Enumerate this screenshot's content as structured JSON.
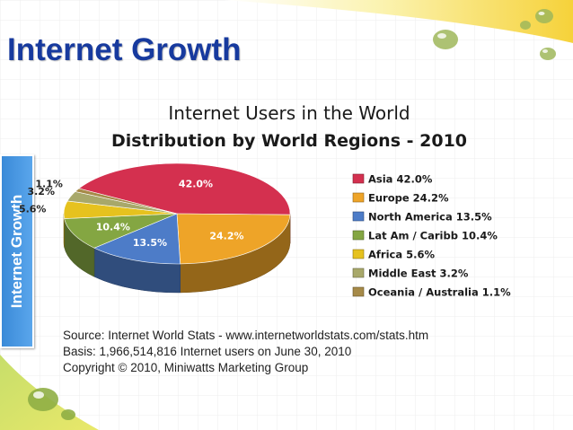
{
  "slide": {
    "title": "Internet Growth",
    "side_tab_label": "Internet Growth",
    "accent_color": "#173a9e",
    "tab_color": "#3a8ad8"
  },
  "chart_data": {
    "type": "pie",
    "title": "Internet Users in the World",
    "subtitle": "Distribution by World Regions - 2010",
    "slices": [
      {
        "label": "Asia",
        "value": 42.0,
        "legend_text": "Asia  42.0%",
        "data_label": "42.0%",
        "color": "#d4304f"
      },
      {
        "label": "Europe",
        "value": 24.2,
        "legend_text": "Europe  24.2%",
        "data_label": "24.2%",
        "color": "#eea428"
      },
      {
        "label": "North America",
        "value": 13.5,
        "legend_text": "North America  13.5%",
        "data_label": "13.5%",
        "color": "#4d7cc8"
      },
      {
        "label": "Lat Am / Caribb",
        "value": 10.4,
        "legend_text": "Lat Am / Caribb  10.4%",
        "data_label": "10.4%",
        "color": "#84a642"
      },
      {
        "label": "Africa",
        "value": 5.6,
        "legend_text": "Africa  5.6%",
        "data_label": "5.6%",
        "color": "#e6c21e"
      },
      {
        "label": "Middle East",
        "value": 3.2,
        "legend_text": "Middle East  3.2%",
        "data_label": "3.2%",
        "color": "#a8a86a"
      },
      {
        "label": "Oceania / Australia",
        "value": 1.1,
        "legend_text": "Oceania / Australia  1.1%",
        "data_label": "1.1%",
        "color": "#a68a48"
      }
    ],
    "legend_position": "right",
    "source_lines": [
      "Source: Internet World Stats -  www.internetworldstats.com/stats.htm",
      "Basis: 1,966,514,816 Internet users on June 30, 2010",
      "Copyright © 2010, Miniwatts Marketing Group"
    ]
  }
}
